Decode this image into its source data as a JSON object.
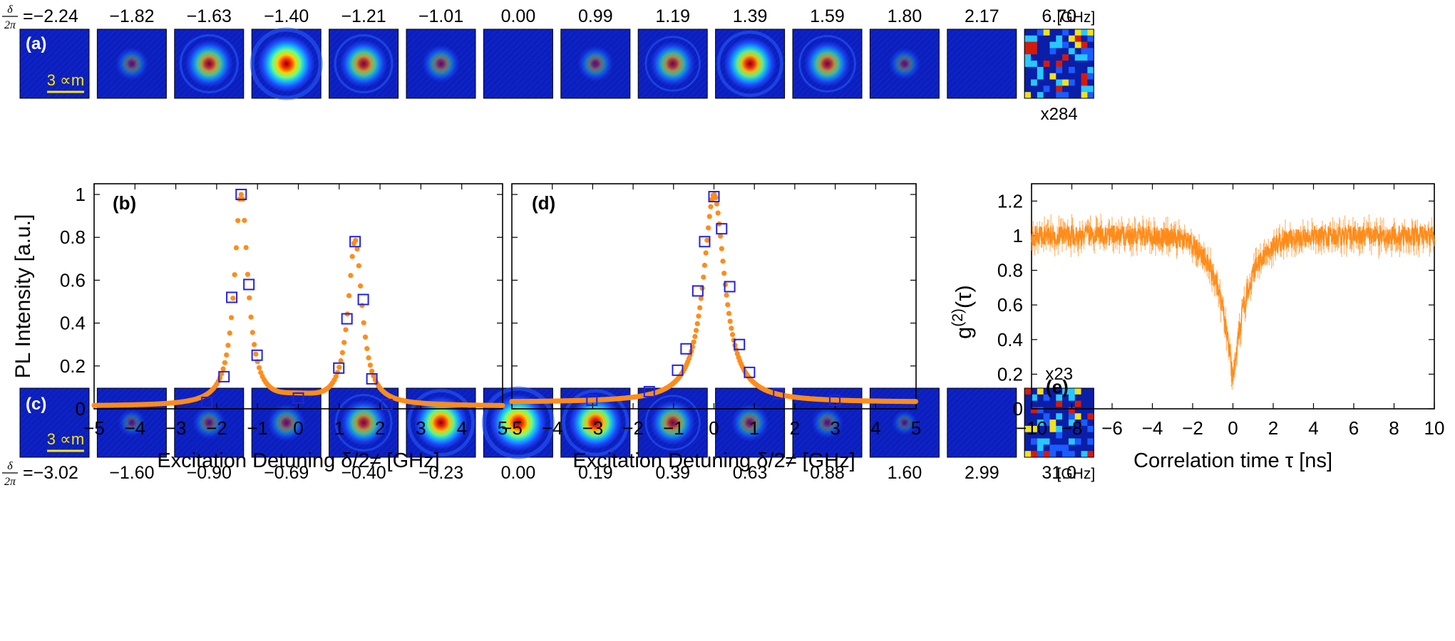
{
  "colors": {
    "orange": "#ff8c1a",
    "square": "#2323d6",
    "scale_bar": "#ffe600",
    "panel_bg": "#0b1fbf"
  },
  "strip_a": {
    "label": "(a)",
    "delta_prefix_num": "δ",
    "delta_prefix_den": "2π",
    "equals": "=",
    "unit": "[GHz]",
    "multiplier": "x284",
    "scale_bar": "3 ∝m",
    "detunings": [
      "−2.24",
      "−1.82",
      "−1.63",
      "−1.40",
      "−1.21",
      "−1.01",
      "0.00",
      "0.99",
      "1.19",
      "1.39",
      "1.59",
      "1.80",
      "2.17",
      "6.70"
    ],
    "intensities": [
      0.0,
      0.12,
      0.55,
      1.0,
      0.55,
      0.22,
      0.0,
      0.18,
      0.45,
      0.78,
      0.5,
      0.1,
      0.0,
      -1
    ]
  },
  "strip_c": {
    "label": "(c)",
    "delta_prefix_num": "δ",
    "delta_prefix_den": "2π",
    "equals": "=",
    "unit": "[GHz]",
    "multiplier": "x23",
    "scale_bar": "3 ∝m",
    "detunings": [
      "−3.02",
      "−1.60",
      "−0.90",
      "−0.69",
      "−0.40",
      "−0.23",
      "0.00",
      "0.19",
      "0.39",
      "0.63",
      "0.88",
      "1.60",
      "2.99",
      "31.0"
    ],
    "intensities": [
      0.0,
      0.04,
      0.12,
      0.22,
      0.5,
      0.82,
      1.0,
      0.8,
      0.45,
      0.22,
      0.1,
      0.02,
      0.0,
      -1
    ]
  },
  "chart_data": [
    {
      "type": "scatter",
      "panel_label": "(b)",
      "xlabel": "Excitation Detuning δ/2≠ [GHz]",
      "ylabel": "PL Intensity [a.u.]",
      "xlim": [
        -5,
        5
      ],
      "ylim": [
        0,
        1.05
      ],
      "xticks": [
        -5,
        -4,
        -3,
        -2,
        -1,
        0,
        1,
        2,
        3,
        4,
        5
      ],
      "yticks": [
        0,
        0.2,
        0.4,
        0.6,
        0.8,
        1
      ],
      "ytick_labels": [
        "0",
        "0.2",
        "0.4",
        "0.6",
        "0.8",
        "1"
      ],
      "curve_model": {
        "baseline": 0.012,
        "center_dip": 0.05,
        "peaks": [
          {
            "center": -1.4,
            "amplitude": 1.0,
            "hwhm": 0.2
          },
          {
            "center": 1.39,
            "amplitude": 0.77,
            "hwhm": 0.21
          }
        ]
      },
      "markers": {
        "x": [
          -2.24,
          -1.82,
          -1.63,
          -1.4,
          -1.21,
          -1.01,
          0.0,
          0.99,
          1.19,
          1.39,
          1.59,
          1.8,
          2.17
        ],
        "y": [
          0.03,
          0.15,
          0.52,
          1.0,
          0.58,
          0.25,
          0.05,
          0.19,
          0.42,
          0.78,
          0.51,
          0.14,
          0.02
        ]
      }
    },
    {
      "type": "scatter",
      "panel_label": "(d)",
      "xlabel": "Excitation Detuning δ/2≠ [GHz]",
      "xlim": [
        -5,
        5
      ],
      "ylim": [
        0,
        1.05
      ],
      "xticks": [
        -5,
        -4,
        -3,
        -2,
        -1,
        0,
        1,
        2,
        3,
        4,
        5
      ],
      "yticks": [
        0,
        0.2,
        0.4,
        0.6,
        0.8,
        1
      ],
      "curve_model": {
        "baseline": 0.03,
        "peaks": [
          {
            "center": 0.0,
            "amplitude": 0.97,
            "hwhm": 0.32
          }
        ]
      },
      "markers": {
        "x": [
          -3.02,
          -1.6,
          -0.9,
          -0.69,
          -0.4,
          -0.23,
          0.0,
          0.19,
          0.39,
          0.63,
          0.88,
          1.6,
          2.99
        ],
        "y": [
          0.04,
          0.08,
          0.18,
          0.28,
          0.55,
          0.78,
          0.99,
          0.84,
          0.57,
          0.3,
          0.17,
          0.07,
          0.04
        ]
      }
    },
    {
      "type": "line",
      "panel_label": "(e)",
      "xlabel": "Correlation time τ [ns]",
      "ylabel": "g(2)(τ)",
      "ylabel_main": "g",
      "ylabel_sup": "(2)",
      "ylabel_tail": "(τ)",
      "xlim": [
        -10,
        10
      ],
      "ylim": [
        0,
        1.3
      ],
      "xticks": [
        -10,
        -8,
        -6,
        -4,
        -2,
        0,
        2,
        4,
        6,
        8,
        10
      ],
      "yticks": [
        0,
        0.2,
        0.4,
        0.6,
        0.8,
        1,
        1.2
      ],
      "ytick_labels": [
        "0",
        "0.2",
        "0.4",
        "0.6",
        "0.8",
        "1",
        "1.2"
      ],
      "curve_model": {
        "baseline": 1.0,
        "min_value": 0.15,
        "dip_center": 0.0,
        "dip_time_constant_ns": 0.75,
        "noise": 0.06
      }
    }
  ]
}
